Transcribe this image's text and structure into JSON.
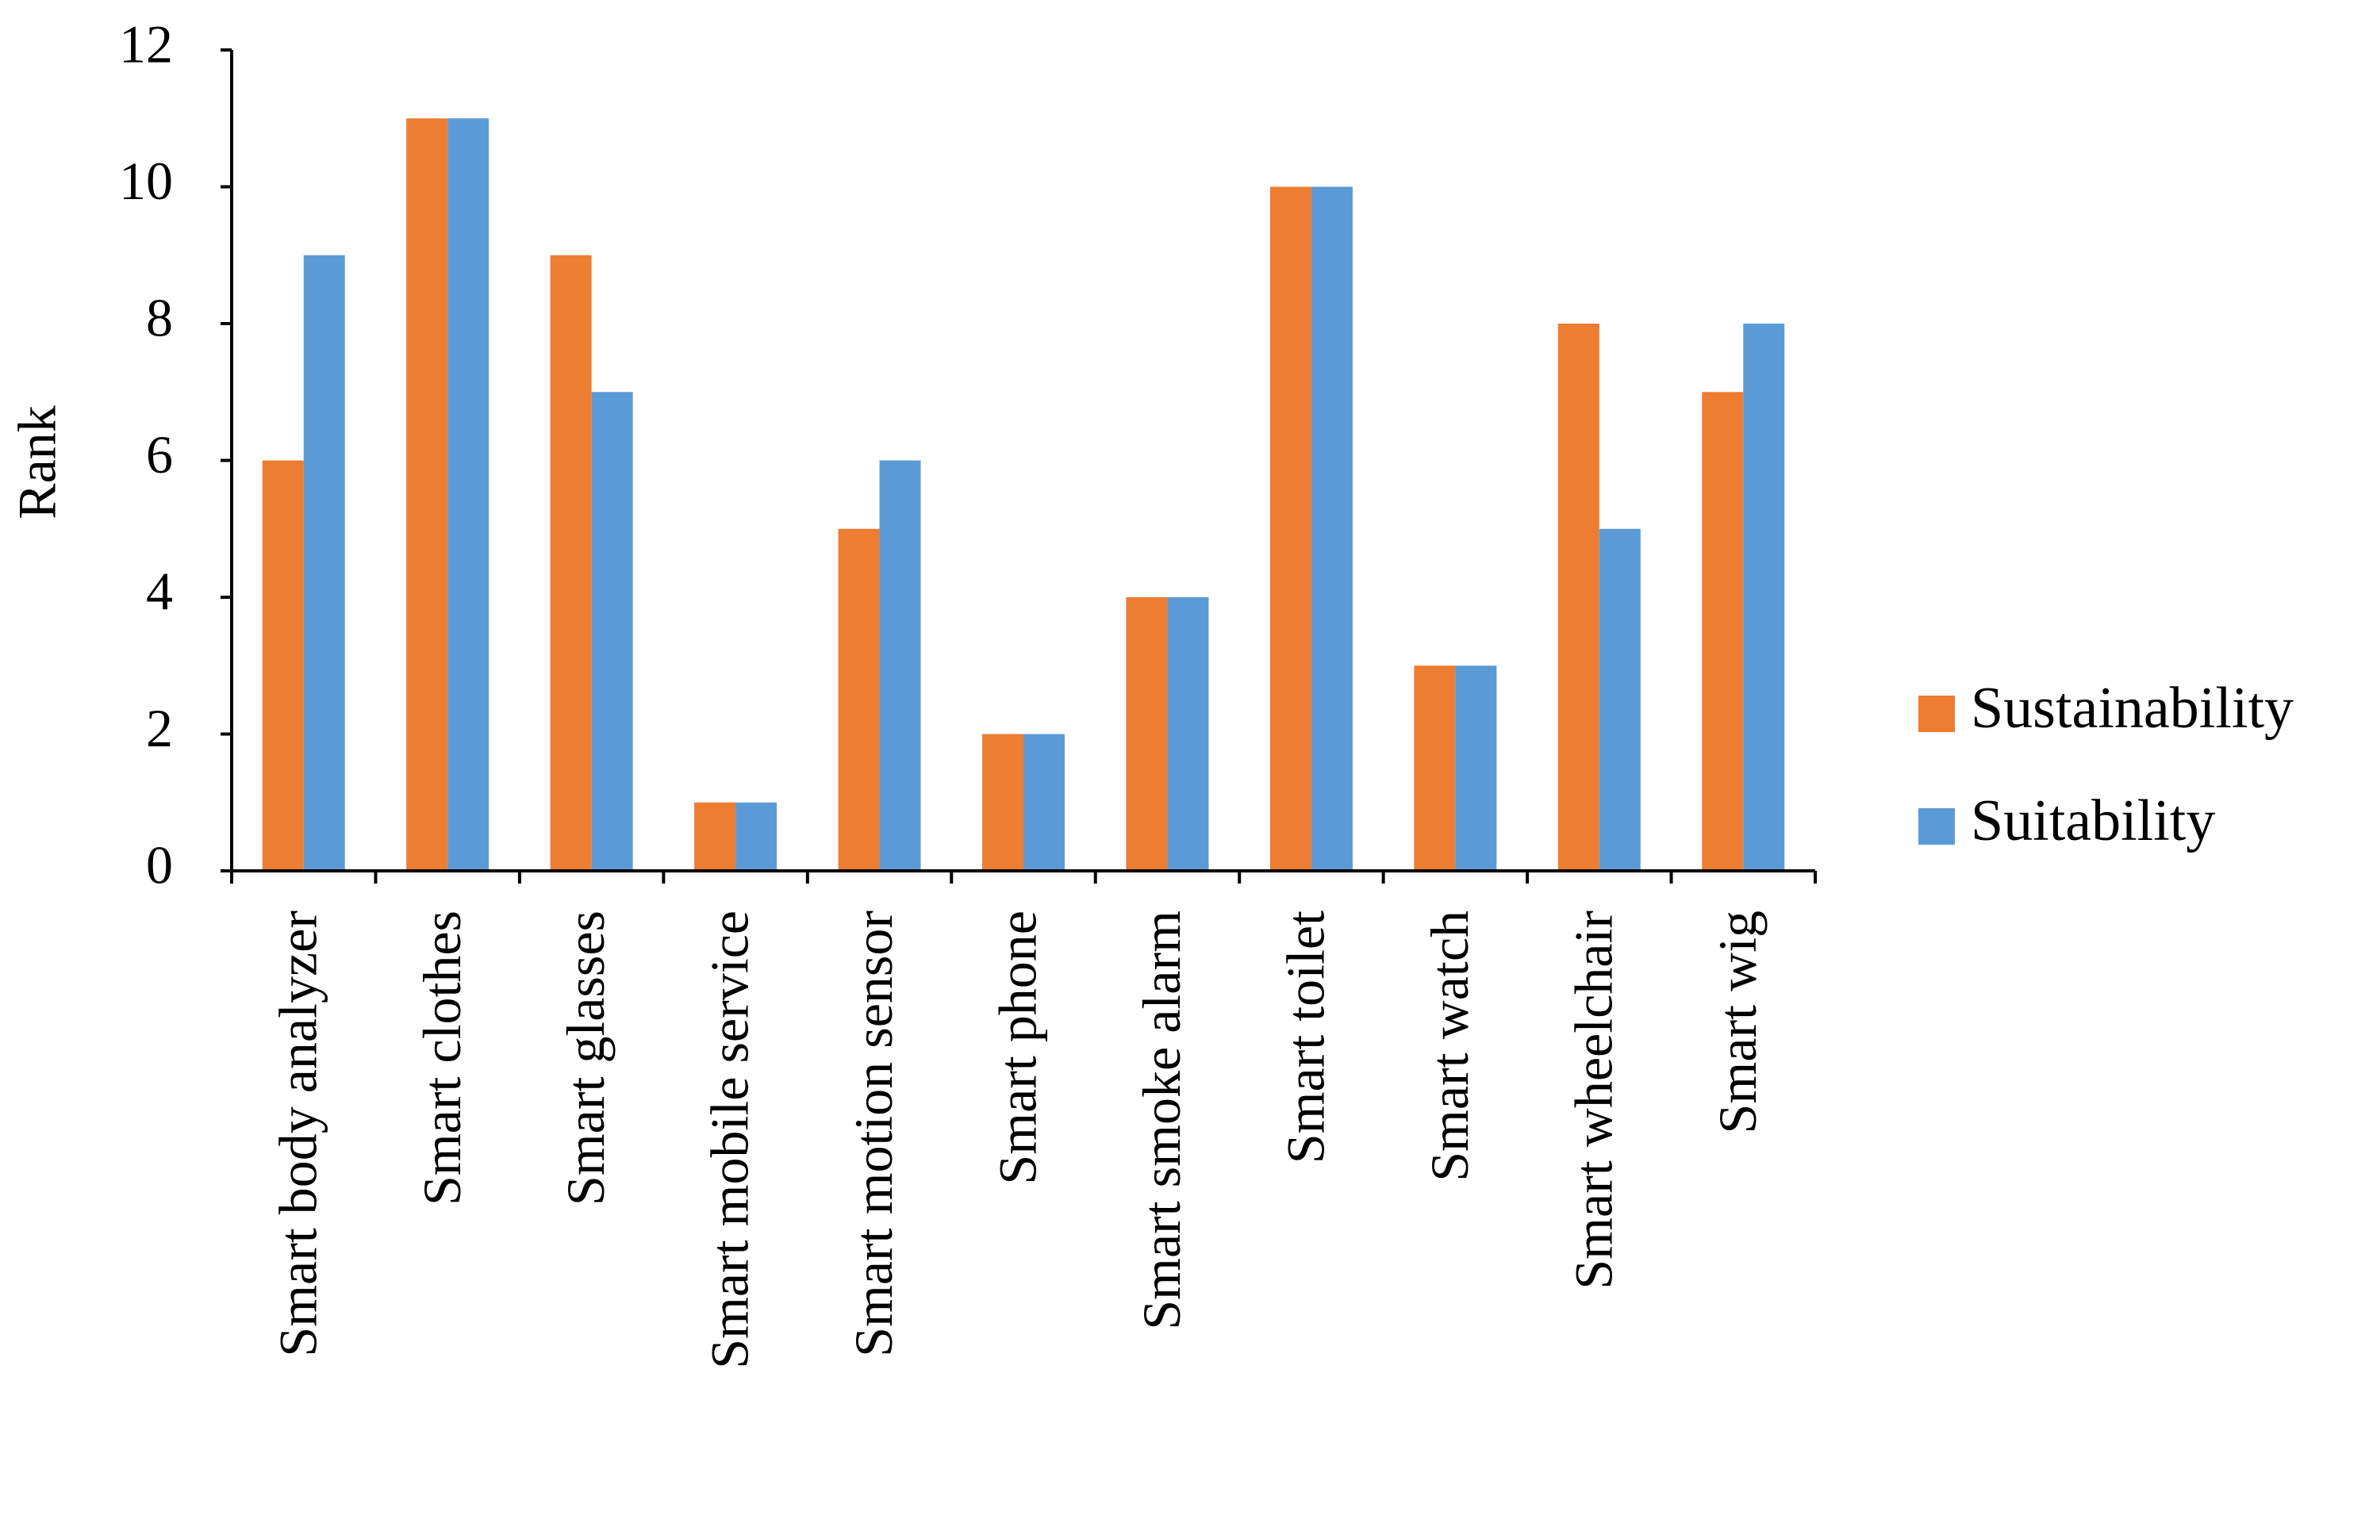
{
  "chart_data": {
    "type": "bar",
    "title": "",
    "xlabel": "",
    "ylabel": "Rank",
    "ylim": [
      0,
      12
    ],
    "yticks": [
      0,
      2,
      4,
      6,
      8,
      10,
      12
    ],
    "grid": false,
    "legend_position": "right",
    "categories": [
      "Smart body analyzer",
      "Smart clothes",
      "Smart glasses",
      "Smart mobile service",
      "Smart motion sensor",
      "Smart phone",
      "Smart smoke alarm",
      "Smart toilet",
      "Smart watch",
      "Smart wheelchair",
      "Smart wig"
    ],
    "series": [
      {
        "name": "Sustainability",
        "color": "#ED7D31",
        "values": [
          6,
          11,
          9,
          1,
          5,
          2,
          4,
          10,
          3,
          8,
          7
        ]
      },
      {
        "name": "Suitability",
        "color": "#5B9BD5",
        "values": [
          9,
          11,
          7,
          1,
          6,
          2,
          4,
          10,
          3,
          5,
          8
        ]
      }
    ]
  }
}
